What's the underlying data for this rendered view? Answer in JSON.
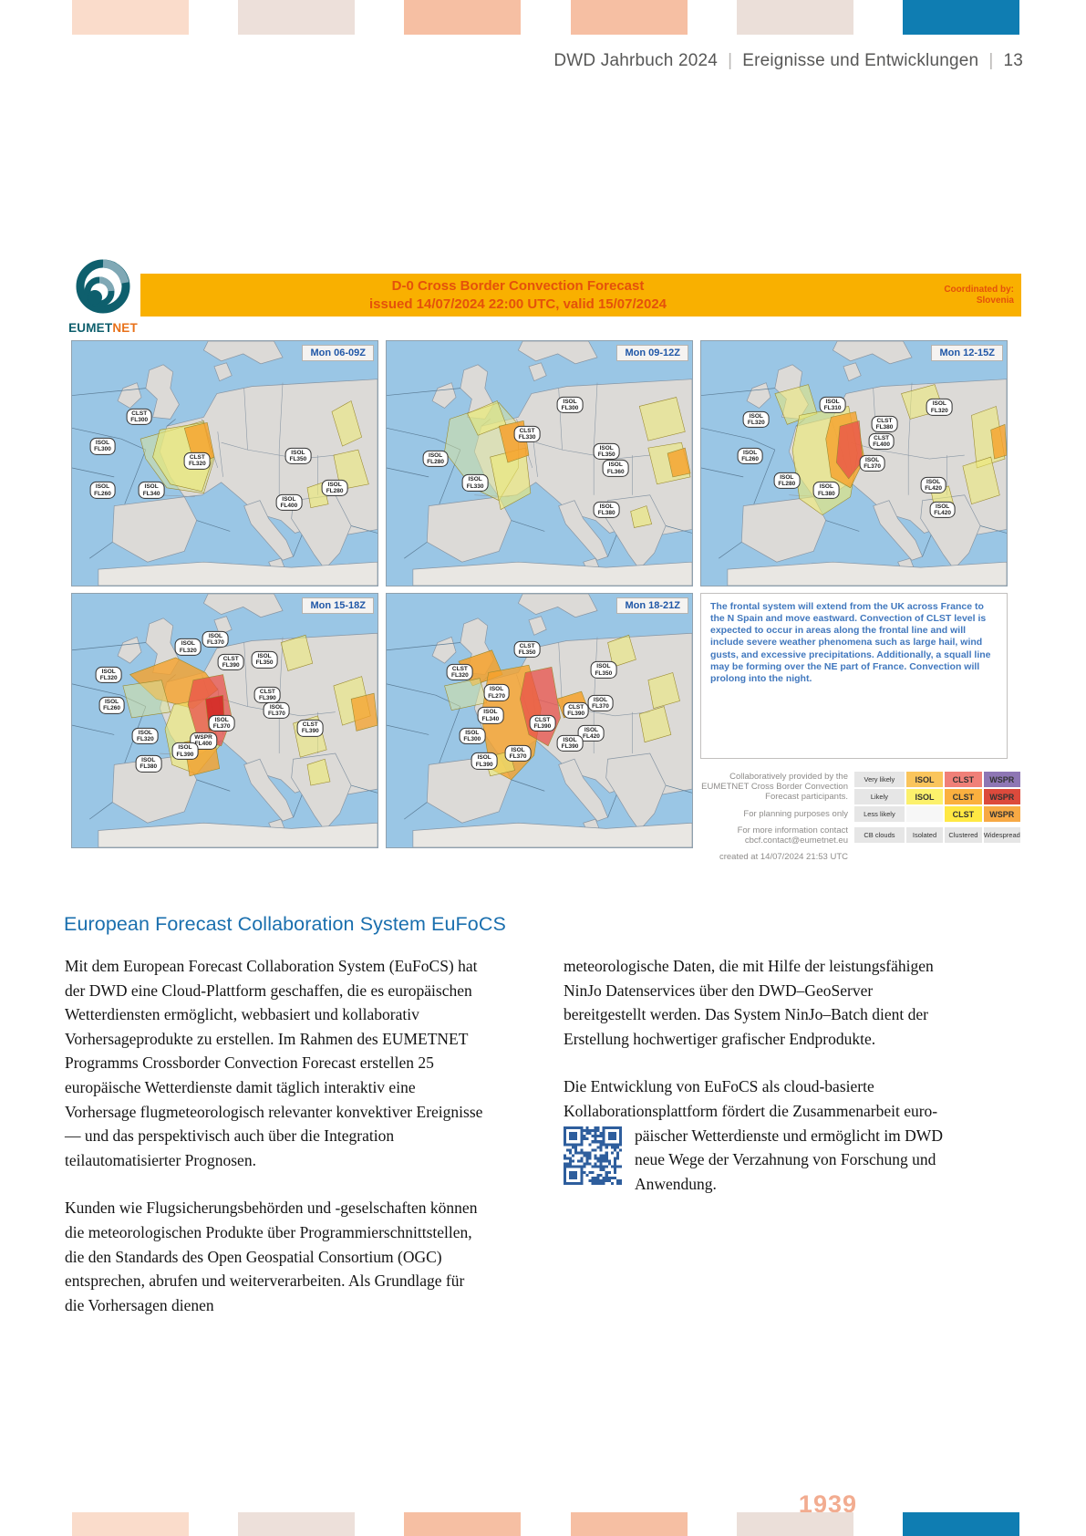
{
  "header": {
    "book": "DWD Jahrbuch 2024",
    "section": "Ereignisse und Entwicklungen",
    "page": "13"
  },
  "deco_bars": {
    "colors": [
      "#fadccb",
      "#ede0da",
      "#f6bfa3",
      "#f6bfa3",
      "#ebdfd9",
      "#0f7db2"
    ]
  },
  "figure": {
    "logo": {
      "text_primary": "EUMET",
      "text_secondary": "NET"
    },
    "banner": {
      "title_line1": "D-0 Cross Border Convection Forecast",
      "title_line2": "issued 14/07/2024 22:00 UTC, valid 15/07/2024",
      "coordinated_by_label": "Coordinated by:",
      "coordinated_by_value": "Slovenia",
      "bg_color": "#f9b000",
      "text_color": "#e4510b"
    },
    "panels": [
      {
        "time_label": "Mon 06-09Z",
        "bubbles": [
          {
            "t": "CLST",
            "f": "FL300",
            "x": 22,
            "y": 31
          },
          {
            "t": "ISOL",
            "f": "FL300",
            "x": 10,
            "y": 43
          },
          {
            "t": "CLST",
            "f": "FL320",
            "x": 41,
            "y": 49
          },
          {
            "t": "ISOL",
            "f": "FL260",
            "x": 10,
            "y": 61
          },
          {
            "t": "ISOL",
            "f": "FL340",
            "x": 26,
            "y": 61
          },
          {
            "t": "ISOL",
            "f": "FL350",
            "x": 74,
            "y": 47
          },
          {
            "t": "ISOL",
            "f": "FL400",
            "x": 71,
            "y": 66
          },
          {
            "t": "ISOL",
            "f": "FL280",
            "x": 86,
            "y": 60
          }
        ]
      },
      {
        "time_label": "Mon 09-12Z",
        "bubbles": [
          {
            "t": "ISOL",
            "f": "FL300",
            "x": 60,
            "y": 26
          },
          {
            "t": "CLST",
            "f": "FL330",
            "x": 46,
            "y": 38
          },
          {
            "t": "ISOL",
            "f": "FL280",
            "x": 16,
            "y": 48
          },
          {
            "t": "ISOL",
            "f": "FL330",
            "x": 29,
            "y": 58
          },
          {
            "t": "ISOL",
            "f": "FL350",
            "x": 72,
            "y": 45
          },
          {
            "t": "ISOL",
            "f": "FL360",
            "x": 75,
            "y": 52
          },
          {
            "t": "ISOL",
            "f": "FL380",
            "x": 72,
            "y": 69
          }
        ]
      },
      {
        "time_label": "Mon 12-15Z",
        "bubbles": [
          {
            "t": "ISOL",
            "f": "FL310",
            "x": 43,
            "y": 26
          },
          {
            "t": "ISOL",
            "f": "FL320",
            "x": 18,
            "y": 32
          },
          {
            "t": "CLST",
            "f": "FL380",
            "x": 60,
            "y": 34
          },
          {
            "t": "CLST",
            "f": "FL400",
            "x": 59,
            "y": 41
          },
          {
            "t": "ISOL",
            "f": "FL320",
            "x": 78,
            "y": 27
          },
          {
            "t": "ISOL",
            "f": "FL260",
            "x": 16,
            "y": 47
          },
          {
            "t": "ISOL",
            "f": "FL370",
            "x": 56,
            "y": 50
          },
          {
            "t": "ISOL",
            "f": "FL280",
            "x": 28,
            "y": 57
          },
          {
            "t": "ISOL",
            "f": "FL380",
            "x": 41,
            "y": 61
          },
          {
            "t": "ISOL",
            "f": "FL420",
            "x": 76,
            "y": 59
          },
          {
            "t": "ISOL",
            "f": "FL420",
            "x": 79,
            "y": 69
          }
        ]
      },
      {
        "time_label": "Mon 15-18Z",
        "bubbles": [
          {
            "t": "ISOL",
            "f": "FL320",
            "x": 38,
            "y": 21
          },
          {
            "t": "ISOL",
            "f": "FL370",
            "x": 47,
            "y": 18
          },
          {
            "t": "CLST",
            "f": "FL390",
            "x": 52,
            "y": 27
          },
          {
            "t": "ISOL",
            "f": "FL350",
            "x": 63,
            "y": 26
          },
          {
            "t": "ISOL",
            "f": "FL320",
            "x": 12,
            "y": 32
          },
          {
            "t": "ISOL",
            "f": "FL260",
            "x": 13,
            "y": 44
          },
          {
            "t": "CLST",
            "f": "FL390",
            "x": 64,
            "y": 40
          },
          {
            "t": "ISOL",
            "f": "FL370",
            "x": 67,
            "y": 46
          },
          {
            "t": "ISOL",
            "f": "FL370",
            "x": 49,
            "y": 51
          },
          {
            "t": "WSPR",
            "f": "FL400",
            "x": 43,
            "y": 58
          },
          {
            "t": "ISOL",
            "f": "FL320",
            "x": 24,
            "y": 56
          },
          {
            "t": "ISOL",
            "f": "FL390",
            "x": 37,
            "y": 62
          },
          {
            "t": "ISOL",
            "f": "FL380",
            "x": 25,
            "y": 67
          },
          {
            "t": "CLST",
            "f": "FL390",
            "x": 78,
            "y": 53
          }
        ]
      },
      {
        "time_label": "Mon 18-21Z",
        "bubbles": [
          {
            "t": "CLST",
            "f": "FL350",
            "x": 46,
            "y": 22
          },
          {
            "t": "CLST",
            "f": "FL320",
            "x": 24,
            "y": 31
          },
          {
            "t": "ISOL",
            "f": "FL270",
            "x": 36,
            "y": 39
          },
          {
            "t": "ISOL",
            "f": "FL350",
            "x": 71,
            "y": 30
          },
          {
            "t": "ISOL",
            "f": "FL340",
            "x": 34,
            "y": 48
          },
          {
            "t": "ISOL",
            "f": "FL300",
            "x": 28,
            "y": 56
          },
          {
            "t": "CLST",
            "f": "FL390",
            "x": 62,
            "y": 46
          },
          {
            "t": "CLST",
            "f": "FL390",
            "x": 51,
            "y": 51
          },
          {
            "t": "ISOL",
            "f": "FL370",
            "x": 70,
            "y": 43
          },
          {
            "t": "ISOL",
            "f": "FL420",
            "x": 67,
            "y": 55
          },
          {
            "t": "ISOL",
            "f": "FL390",
            "x": 60,
            "y": 59
          },
          {
            "t": "ISOL",
            "f": "FL370",
            "x": 43,
            "y": 63
          },
          {
            "t": "ISOL",
            "f": "FL390",
            "x": 32,
            "y": 66
          }
        ]
      }
    ],
    "discussion_text": "The frontal system will extend from the UK across France to the N Spain and move eastward. Convection of CLST level is expected to occur in areas along the frontal line and will include severe weather phenomena such as large hail, wind gusts, and excessive precipitations. Additionally, a squall line may be forming over the NE part of France. Convection will prolong into the night.",
    "credits": [
      "Collaboratively provided by the EUMETNET Cross Border Convection Forecast participants.",
      "For planning purposes only",
      "For more information contact cbcf.contact@eumetnet.eu",
      "created at 14/07/2024 21:53 UTC"
    ],
    "legend": {
      "rows": [
        {
          "label": "Very likely",
          "cells": [
            {
              "text": "ISOL",
              "bg": "#fac55c"
            },
            {
              "text": "CLST",
              "bg": "#f08078"
            },
            {
              "text": "WSPR",
              "bg": "#8e76b4"
            }
          ]
        },
        {
          "label": "Likely",
          "cells": [
            {
              "text": "ISOL",
              "bg": "#fcf16c"
            },
            {
              "text": "CLST",
              "bg": "#fbb03f"
            },
            {
              "text": "WSPR",
              "bg": "#dc4a3c"
            }
          ]
        },
        {
          "label": "Less likely",
          "cells": [
            {
              "text": "",
              "bg": "#f7f7f7"
            },
            {
              "text": "CLST",
              "bg": "#ffe843"
            },
            {
              "text": "WSPR",
              "bg": "#f7a944"
            }
          ]
        },
        {
          "label": "CB clouds",
          "cells": [
            {
              "text": "Isolated",
              "bg": "#e6e6e6"
            },
            {
              "text": "Clustered",
              "bg": "#e6e6e6"
            },
            {
              "text": "Widespread",
              "bg": "#e6e6e6"
            }
          ],
          "footer": true
        }
      ]
    }
  },
  "article": {
    "heading": "European Forecast Collaboration System EuFoCS",
    "left": [
      "Mit dem European Forecast Collaboration System (EuFoCS) hat der DWD eine Cloud-Plattform geschaffen, die es europäischen Wetterdiensten ermöglicht, webbasiert und kollaborativ Vorhersageprodukte zu erstellen. Im Rahmen des EUMETNET Programms Crossborder Convection Forecast erstellen 25 europäische Wetterdienste damit täglich interaktiv eine Vorhersage flugmeteorologisch relevanter konvektiver Ereignisse — und das perspektivisch auch über die Integration teilautomatisierter Prognosen.",
      "Kunden wie Flugsicherungsbehörden und -geselschaften können die meteorologischen Produkte über Programmierschnittstellen, die den Standards des Open Geospatial Consortium (OGC) entsprechen, abrufen und weiterverarbeiten. Als Grundlage für die Vorhersagen dienen"
    ],
    "right": [
      "meteorologische Daten, die mit Hilfe der leistungsfähigen NinJo Datenservices über den DWD–GeoServer bereitgestellt werden. Das System NinJo–Batch dient der Erstellung hochwertiger grafischer Endprodukte."
    ],
    "right_p2_before": "Die Entwicklung von EuFoCS als cloud-basierte Kollaborationsplattform fördert die Zusammenarbeit euro-",
    "right_p2_after": "päischer Wetterdienste und ermöglicht im DWD neue Wege der Verzahnung von Forschung und Anwendung."
  },
  "footer": {
    "number": "1939"
  }
}
